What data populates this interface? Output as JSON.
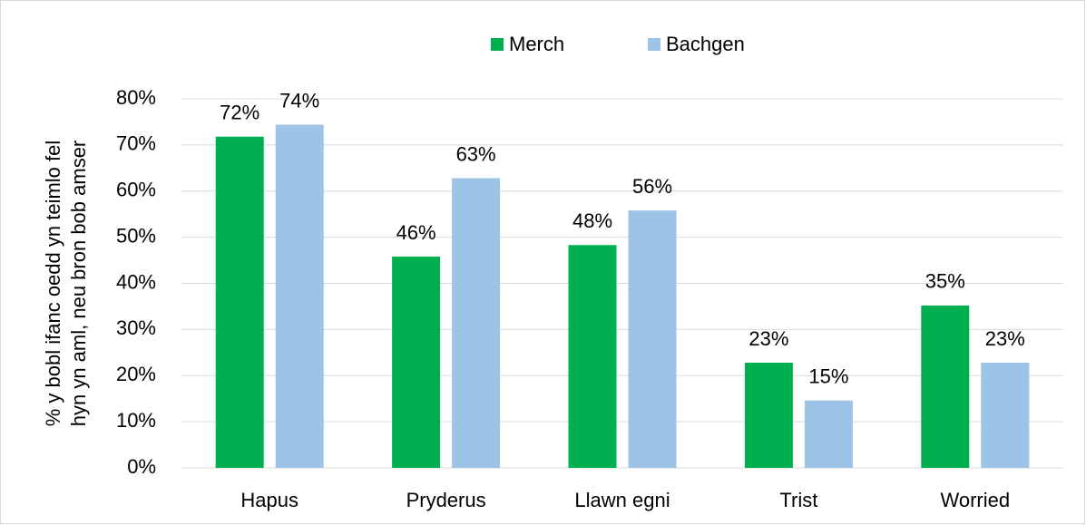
{
  "chart_data": {
    "type": "bar",
    "y_label": [
      "% y bobl ifanc oedd yn teimlo fel",
      "hyn yn aml, neu bron bob amser"
    ],
    "categories": [
      "Hapus",
      "Pryderus",
      "Llawn egni",
      "Trist",
      "Worried"
    ],
    "series": [
      {
        "name": "Merch",
        "color": "#00b050",
        "values": [
          71.8,
          45.8,
          48.3,
          22.8,
          35.2
        ],
        "value_labels": [
          "72%",
          "46%",
          "48%",
          "23%",
          "35%"
        ]
      },
      {
        "name": "Bachgen",
        "color": "#9dc3e6",
        "values": [
          74.4,
          62.8,
          55.8,
          14.6,
          22.8
        ],
        "value_labels": [
          "74%",
          "63%",
          "56%",
          "15%",
          "23%"
        ]
      }
    ],
    "ylim": [
      0,
      80
    ],
    "yticks": [
      {
        "value": 0,
        "label": "0%"
      },
      {
        "value": 10,
        "label": "10%"
      },
      {
        "value": 20,
        "label": "20%"
      },
      {
        "value": 30,
        "label": "30%"
      },
      {
        "value": 40,
        "label": "40%"
      },
      {
        "value": 50,
        "label": "50%"
      },
      {
        "value": 60,
        "label": "60%"
      },
      {
        "value": 70,
        "label": "70%"
      },
      {
        "value": 80,
        "label": "80%"
      }
    ],
    "grid": true,
    "legend": "top"
  }
}
